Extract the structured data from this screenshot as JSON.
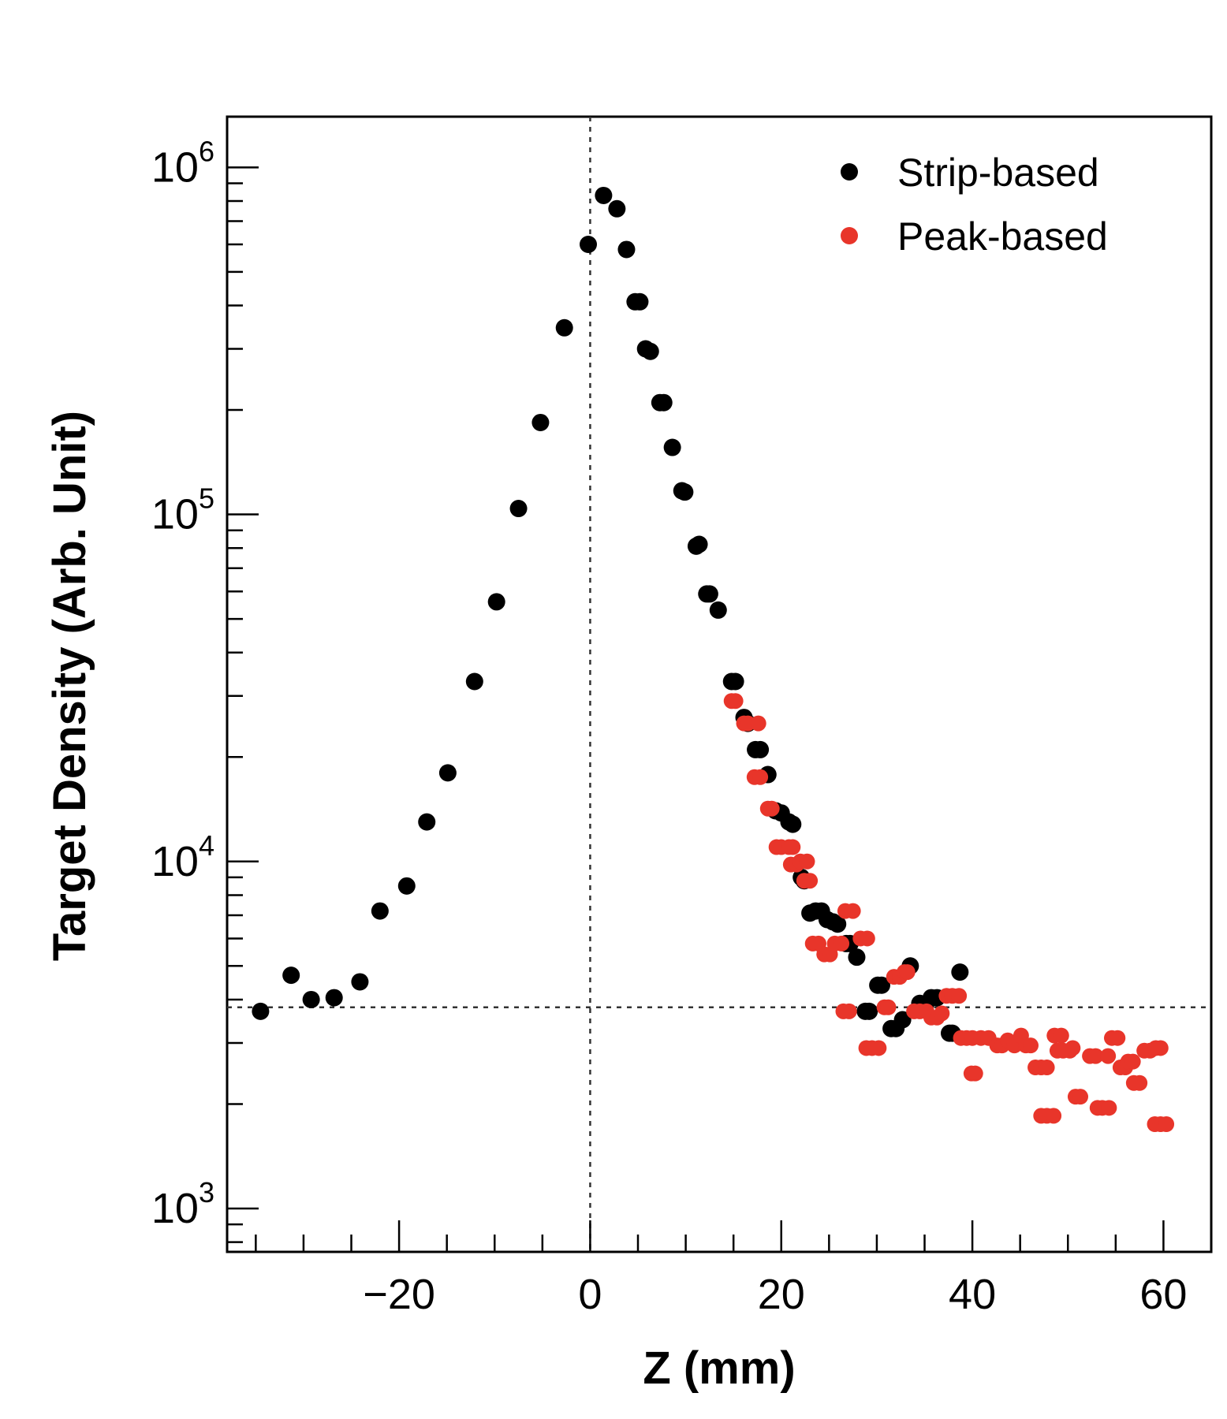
{
  "chart_data": {
    "type": "scatter",
    "xlabel": "Z (mm)",
    "ylabel": "Target Density (Arb. Unit)",
    "y_scale": "log",
    "xlim": [
      -38,
      65
    ],
    "ylim": [
      750,
      1400000
    ],
    "x_ticks": [
      -20,
      0,
      20,
      40,
      60
    ],
    "x_tick_labels": [
      "−20",
      "0",
      "20",
      "40",
      "60"
    ],
    "y_ticks": [
      1000,
      10000,
      100000,
      1000000
    ],
    "y_tick_labels": [
      {
        "base": "10",
        "exp": "3"
      },
      {
        "base": "10",
        "exp": "4"
      },
      {
        "base": "10",
        "exp": "5"
      },
      {
        "base": "10",
        "exp": "6"
      }
    ],
    "reference_lines": {
      "vertical_x": 0,
      "horizontal_y": 3800
    },
    "legend_position": "top-right",
    "grid": false,
    "series": [
      {
        "name": "Strip-based",
        "color": "#000000",
        "points": [
          [
            -34.5,
            3700
          ],
          [
            -31.3,
            4700
          ],
          [
            -29.2,
            4000
          ],
          [
            -26.8,
            4050
          ],
          [
            -24.1,
            4500
          ],
          [
            -22.0,
            7200
          ],
          [
            -19.2,
            8500
          ],
          [
            -17.1,
            13000
          ],
          [
            -14.9,
            18000
          ],
          [
            -12.1,
            33000
          ],
          [
            -9.8,
            56000
          ],
          [
            -7.5,
            104000
          ],
          [
            -5.2,
            184000
          ],
          [
            -2.7,
            345000
          ],
          [
            -0.2,
            600000
          ],
          [
            1.4,
            830000
          ],
          [
            2.8,
            760000
          ],
          [
            3.8,
            580000
          ],
          [
            4.7,
            410000
          ],
          [
            5.2,
            410000
          ],
          [
            5.8,
            300000
          ],
          [
            6.3,
            295000
          ],
          [
            7.3,
            210000
          ],
          [
            7.7,
            210000
          ],
          [
            8.6,
            156000
          ],
          [
            9.6,
            117000
          ],
          [
            9.9,
            116000
          ],
          [
            11.1,
            81000
          ],
          [
            11.4,
            82000
          ],
          [
            12.2,
            59000
          ],
          [
            12.5,
            59000
          ],
          [
            13.4,
            53000
          ],
          [
            14.8,
            33000
          ],
          [
            15.2,
            33000
          ],
          [
            16.1,
            26000
          ],
          [
            16.5,
            25000
          ],
          [
            17.3,
            21000
          ],
          [
            17.8,
            21000
          ],
          [
            18.6,
            17800
          ],
          [
            19.4,
            14000
          ],
          [
            20.0,
            13800
          ],
          [
            20.8,
            13000
          ],
          [
            21.2,
            12800
          ],
          [
            22.1,
            9000
          ],
          [
            22.4,
            8800
          ],
          [
            23.0,
            7100
          ],
          [
            23.6,
            7200
          ],
          [
            24.2,
            7200
          ],
          [
            24.8,
            6800
          ],
          [
            25.4,
            6700
          ],
          [
            25.9,
            6600
          ],
          [
            26.8,
            5800
          ],
          [
            27.2,
            5800
          ],
          [
            27.9,
            5300
          ],
          [
            28.8,
            3700
          ],
          [
            29.2,
            3700
          ],
          [
            30.1,
            4400
          ],
          [
            30.5,
            4400
          ],
          [
            31.5,
            3300
          ],
          [
            32.0,
            3300
          ],
          [
            32.7,
            3500
          ],
          [
            33.5,
            5000
          ],
          [
            34.5,
            3900
          ],
          [
            35.1,
            3850
          ],
          [
            35.7,
            4050
          ],
          [
            36.3,
            4050
          ],
          [
            37.6,
            3200
          ],
          [
            37.9,
            3200
          ],
          [
            38.7,
            4800
          ]
        ]
      },
      {
        "name": "Peak-based",
        "color": "#e8352a",
        "points": [
          [
            14.8,
            29000
          ],
          [
            15.2,
            29000
          ],
          [
            16.1,
            25000
          ],
          [
            16.5,
            25000
          ],
          [
            17.6,
            25000
          ],
          [
            17.2,
            17500
          ],
          [
            17.8,
            17500
          ],
          [
            18.6,
            14200
          ],
          [
            19.0,
            14200
          ],
          [
            19.5,
            11000
          ],
          [
            20.0,
            11000
          ],
          [
            20.8,
            11000
          ],
          [
            21.2,
            11000
          ],
          [
            21.0,
            9800
          ],
          [
            21.6,
            9800
          ],
          [
            22.0,
            10000
          ],
          [
            22.7,
            10000
          ],
          [
            22.4,
            8800
          ],
          [
            23.0,
            8800
          ],
          [
            23.3,
            5800
          ],
          [
            23.9,
            5800
          ],
          [
            24.5,
            5400
          ],
          [
            25.1,
            5400
          ],
          [
            25.6,
            5800
          ],
          [
            26.3,
            5800
          ],
          [
            26.7,
            7200
          ],
          [
            27.5,
            7200
          ],
          [
            26.5,
            3700
          ],
          [
            27.1,
            3700
          ],
          [
            28.3,
            6000
          ],
          [
            29.0,
            6000
          ],
          [
            28.9,
            2900
          ],
          [
            29.5,
            2900
          ],
          [
            30.2,
            2900
          ],
          [
            30.8,
            3800
          ],
          [
            31.2,
            3800
          ],
          [
            31.8,
            4650
          ],
          [
            32.4,
            4650
          ],
          [
            32.9,
            4800
          ],
          [
            33.2,
            4800
          ],
          [
            33.9,
            3700
          ],
          [
            34.5,
            3700
          ],
          [
            35.2,
            3700
          ],
          [
            35.7,
            3550
          ],
          [
            36.3,
            3550
          ],
          [
            36.8,
            3650
          ],
          [
            37.3,
            4100
          ],
          [
            37.9,
            4100
          ],
          [
            38.6,
            4100
          ],
          [
            38.8,
            3100
          ],
          [
            39.4,
            3100
          ],
          [
            40.0,
            3100
          ],
          [
            39.9,
            2450
          ],
          [
            40.3,
            2450
          ],
          [
            40.9,
            3100
          ],
          [
            41.7,
            3100
          ],
          [
            42.6,
            2950
          ],
          [
            43.1,
            2950
          ],
          [
            43.7,
            3050
          ],
          [
            44.4,
            2950
          ],
          [
            45.1,
            3150
          ],
          [
            45.6,
            2950
          ],
          [
            46.1,
            2950
          ],
          [
            46.6,
            2550
          ],
          [
            47.2,
            2550
          ],
          [
            47.8,
            2550
          ],
          [
            47.2,
            1850
          ],
          [
            47.8,
            1850
          ],
          [
            48.5,
            1850
          ],
          [
            48.6,
            3150
          ],
          [
            49.3,
            3150
          ],
          [
            48.9,
            2850
          ],
          [
            49.5,
            2850
          ],
          [
            50.2,
            2850
          ],
          [
            50.5,
            2900
          ],
          [
            50.8,
            2100
          ],
          [
            51.3,
            2100
          ],
          [
            52.3,
            2750
          ],
          [
            52.9,
            2750
          ],
          [
            53.1,
            1950
          ],
          [
            53.6,
            1950
          ],
          [
            54.3,
            1950
          ],
          [
            54.2,
            2750
          ],
          [
            54.6,
            3100
          ],
          [
            55.2,
            3100
          ],
          [
            55.5,
            2550
          ],
          [
            56.0,
            2550
          ],
          [
            56.3,
            2650
          ],
          [
            56.8,
            2650
          ],
          [
            56.9,
            2300
          ],
          [
            57.5,
            2300
          ],
          [
            58.0,
            2850
          ],
          [
            58.6,
            2850
          ],
          [
            59.2,
            2900
          ],
          [
            59.7,
            2900
          ],
          [
            59.1,
            1750
          ],
          [
            59.7,
            1750
          ],
          [
            60.3,
            1750
          ]
        ]
      }
    ]
  }
}
